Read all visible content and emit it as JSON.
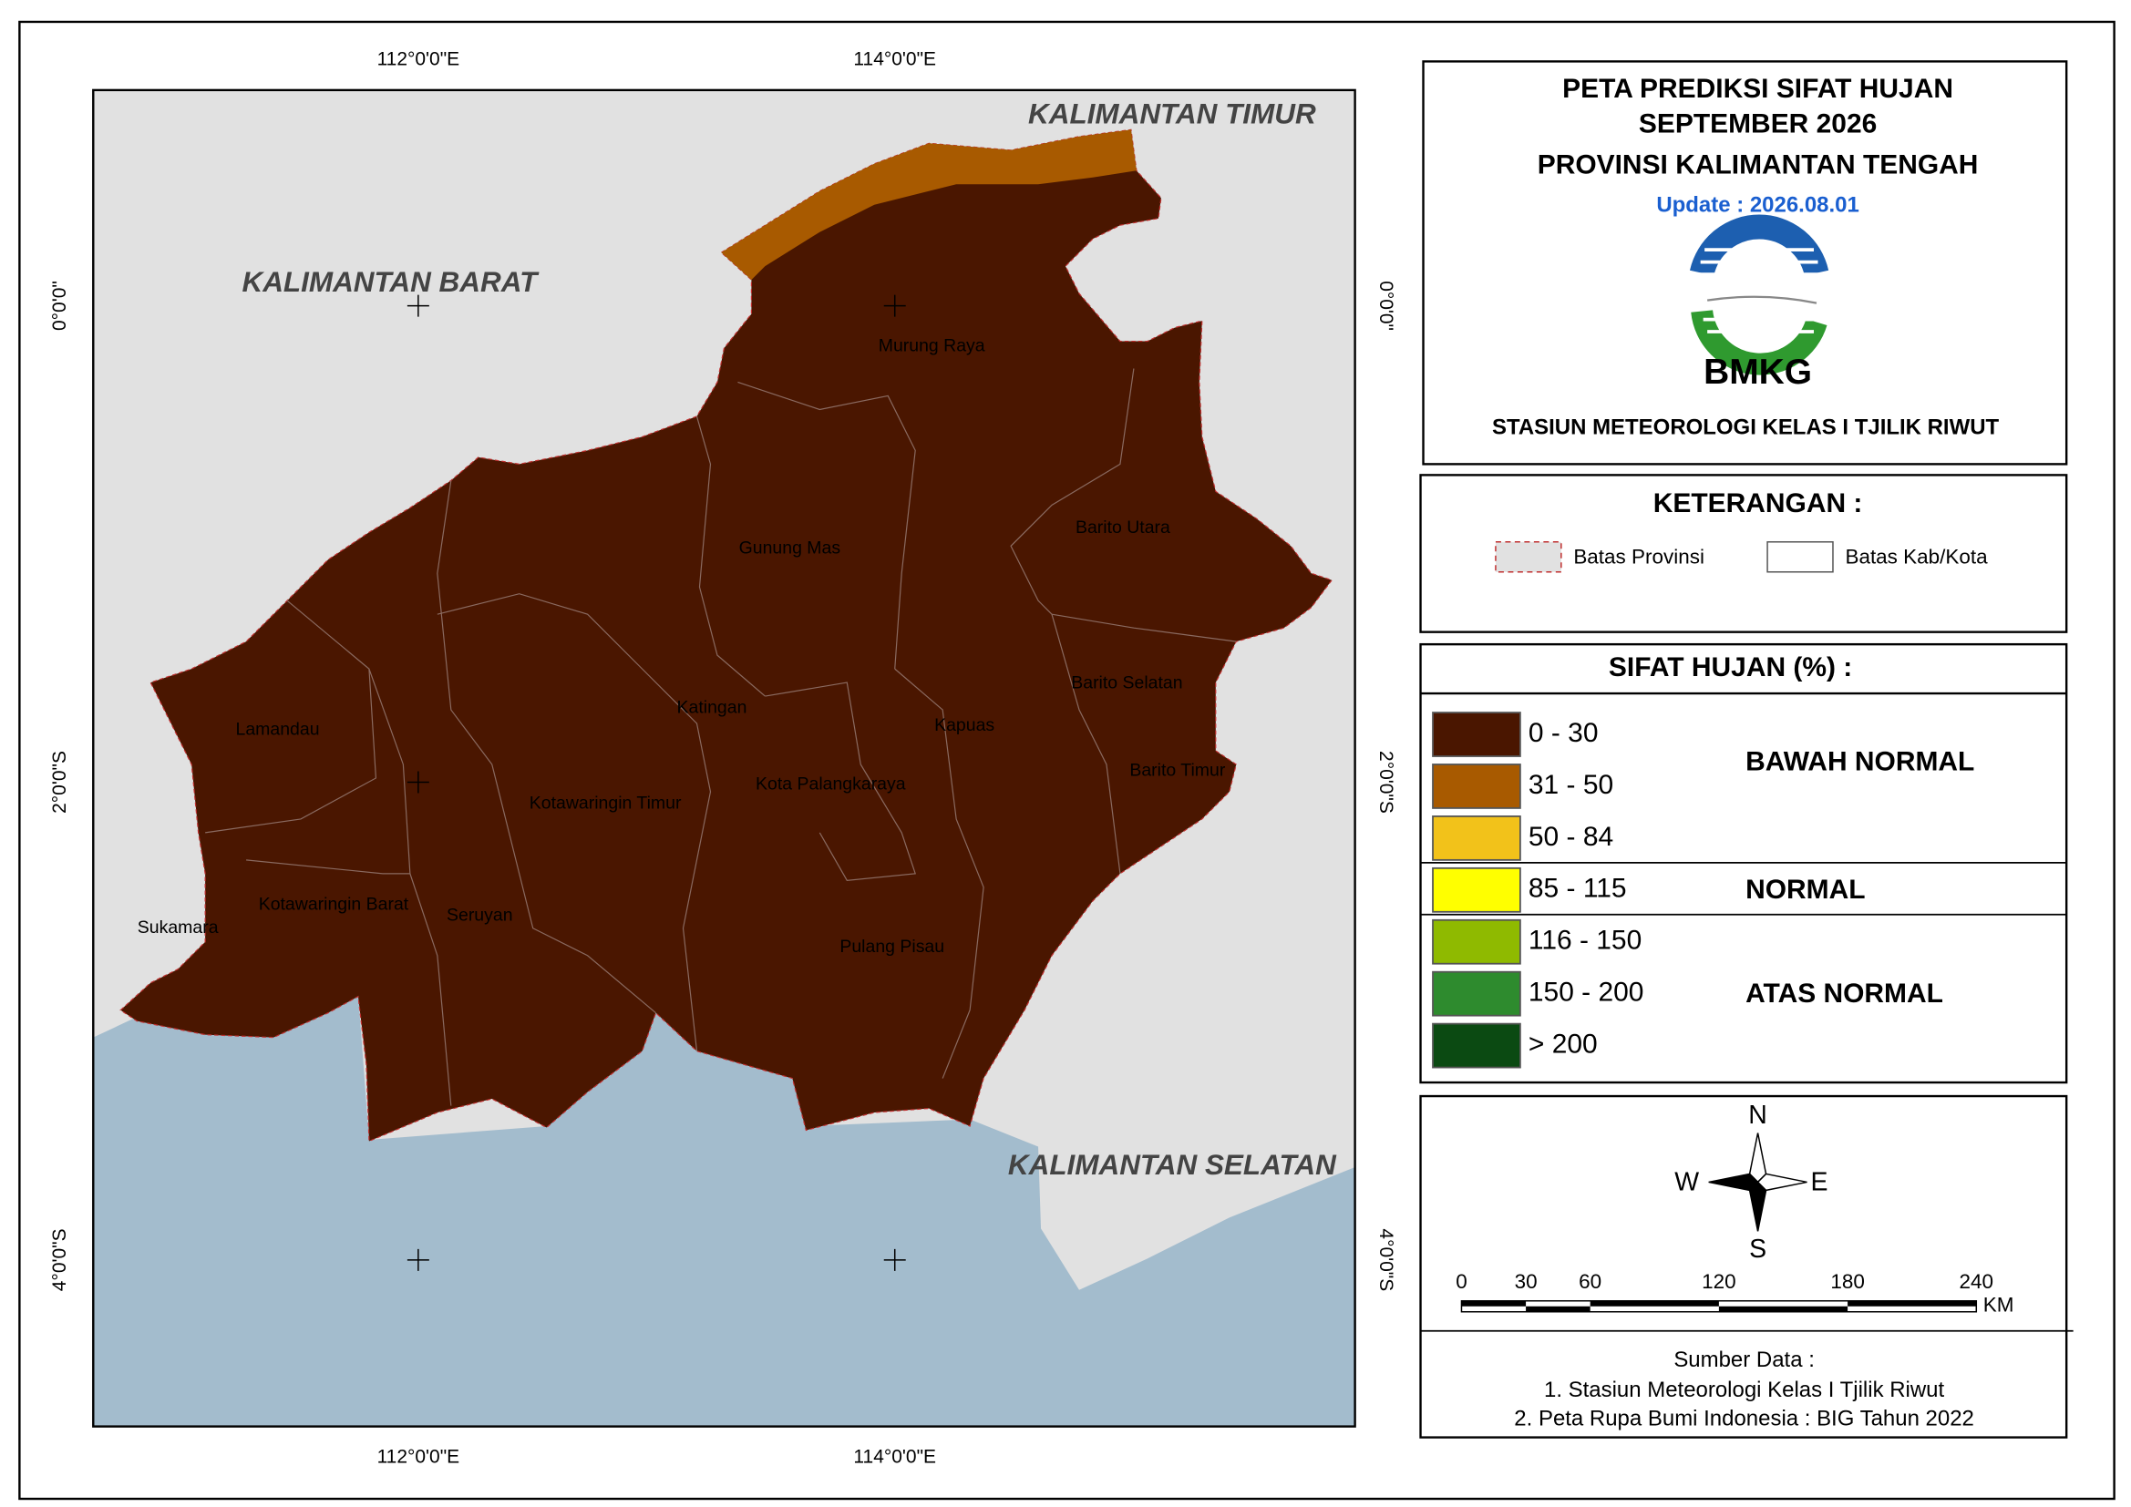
{
  "map": {
    "lon_labels": [
      "112°0'0\"E",
      "114°0'0\"E"
    ],
    "lat_labels": [
      "0°0'0\"",
      "2°0'0\"S",
      "4°0'0\"S"
    ],
    "regions": [
      "KALIMANTAN TIMUR",
      "KALIMANTAN BARAT",
      "KALIMANTAN SELATAN"
    ],
    "districts": [
      "Murung Raya",
      "Gunung Mas",
      "Barito Utara",
      "Barito Selatan",
      "Katingan",
      "Kapuas",
      "Lamandau",
      "Barito Timur",
      "Kota Palangkaraya",
      "Kotawaringin Timur",
      "Kotawaringin Barat",
      "Seruyan",
      "Sukamara",
      "Pulang Pisau"
    ]
  },
  "header": {
    "title_lines": [
      "PETA PREDIKSI SIFAT HUJAN",
      "SEPTEMBER 2026",
      "PROVINSI KALIMANTAN TENGAH"
    ],
    "update": "Update : 2026.08.01",
    "logo_text": "BMKG",
    "station": "STASIUN METEOROLOGI KELAS I TJILIK RIWUT"
  },
  "keterangan": {
    "title": "KETERANGAN :",
    "items": [
      "Batas Provinsi",
      "Batas Kab/Kota"
    ]
  },
  "legend": {
    "title": "SIFAT HUJAN (%) :",
    "classes": [
      {
        "label": "0 - 30",
        "color": "#4a1600"
      },
      {
        "label": "31 - 50",
        "color": "#a85a00"
      },
      {
        "label": "50 - 84",
        "color": "#f2c21a"
      },
      {
        "label": "85 - 115",
        "color": "#ffff00"
      },
      {
        "label": "116 - 150",
        "color": "#8fba00"
      },
      {
        "label": "150 - 200",
        "color": "#2e8b2e"
      },
      {
        "label": "> 200",
        "color": "#0b4a12"
      }
    ],
    "groups": [
      "BAWAH NORMAL",
      "NORMAL",
      "ATAS NORMAL"
    ]
  },
  "north_arrow": {
    "n": "N",
    "s": "S",
    "w": "W",
    "e": "E"
  },
  "scale_bar": {
    "ticks": [
      0,
      30,
      60,
      120,
      180,
      240
    ],
    "unit": "KM"
  },
  "source": {
    "title": "Sumber Data :",
    "lines": [
      "1. Stasiun Meteorologi Kelas I Tjilik Riwut",
      "2. Peta Rupa Bumi Indonesia : BIG Tahun 2022"
    ]
  }
}
